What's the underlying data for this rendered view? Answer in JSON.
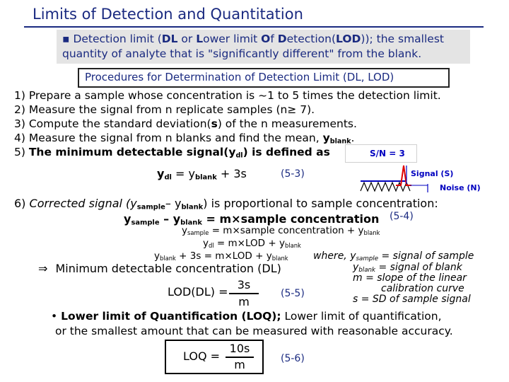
{
  "title": "Limits of Detection and Quantitation",
  "definition": {
    "bullet": "▪",
    "line1_a": "Detection limit (",
    "line1_b": "DL",
    "line1_c": " or ",
    "line1_d": "L",
    "line1_e": "ower limit ",
    "line1_f": "O",
    "line1_g": "f ",
    "line1_h": "D",
    "line1_i": "etection(",
    "line1_j": "LOD",
    "line1_k": ")); the smallest",
    "line2": "quantity of analyte that is \"significantly different\" from the blank."
  },
  "procedures_heading": "Procedures for Determination of Detection Limit (DL, LOD)",
  "steps": {
    "s1": "1) Prepare a sample whose concentration is ~1 to 5 times the detection limit.",
    "s2": "2) Measure the signal from n replicate samples (n≥ 7).",
    "s3_a": "3) Compute the standard deviation(",
    "s3_b": "s",
    "s3_c": ") of the n measurements.",
    "s4_a": "4) Measure the signal from n blanks and find the mean, ",
    "s4_y": "y",
    "s4_sub": "blank",
    "s4_end": ".",
    "s5_a": "5) ",
    "s5_b": "The minimum detectable signal(y",
    "s5_sub": "dl",
    "s5_c": ") is defined as"
  },
  "eq53": {
    "y": "y",
    "sub1": "dl",
    "mid": " = y",
    "sub2": "blank",
    "end": " + 3s",
    "num": "(5-3)"
  },
  "sn_figure": {
    "ratio": "S/N = 3",
    "signal": "Signal (S)",
    "noise": "Noise (N)"
  },
  "step6": {
    "a": "6) ",
    "b": "Corrected signal (y",
    "sub1": "sample",
    "c": "– y",
    "sub2": "blank",
    "d": ") is proportional to sample concentration:"
  },
  "eq54": {
    "y1": "y",
    "sub1": "sample",
    "m1": " – y",
    "sub2": "blank",
    "rest": " = m×sample concentration",
    "num": "(5-4)"
  },
  "aligned": {
    "r1_y": "y",
    "r1_sub": "sample",
    "r1_rest": " = m×sample concentration + y",
    "r1_sub2": "blank",
    "r2_y": "y",
    "r2_sub": "dl",
    "r2_rest": " = m×LOD + y",
    "r2_sub2": "blank",
    "r3_y": "y",
    "r3_sub": "blank",
    "r3_mid": " + 3s = m×LOD + y",
    "r3_sub2": "blank"
  },
  "where": {
    "w1_a": "where, ",
    "w1_y": "y",
    "w1_sub": "sample",
    "w1_rest": " = signal of sample",
    "w2_y": "y",
    "w2_sub": "blank",
    "w2_rest": " = signal of blank",
    "w3": "m = slope of the linear",
    "w4": "calibration curve",
    "w5": "s = SD of sample signal"
  },
  "dl": {
    "arrow": "⇒",
    "text": "Minimum detectable concentration (DL)",
    "lhs": "LOD(DL) =",
    "numerator": "3s",
    "denominator": "m",
    "num": "(5-5)"
  },
  "loq": {
    "bullet": "•",
    "l1_a": "Lower limit of Quantification (LOQ);",
    "l1_b": " Lower limit of quantification,",
    "l2": "or the smallest amount  that can be measured with reasonable accuracy.",
    "lhs": "LOQ =",
    "numerator": "10s",
    "denominator": "m",
    "num": "(5-6)"
  }
}
